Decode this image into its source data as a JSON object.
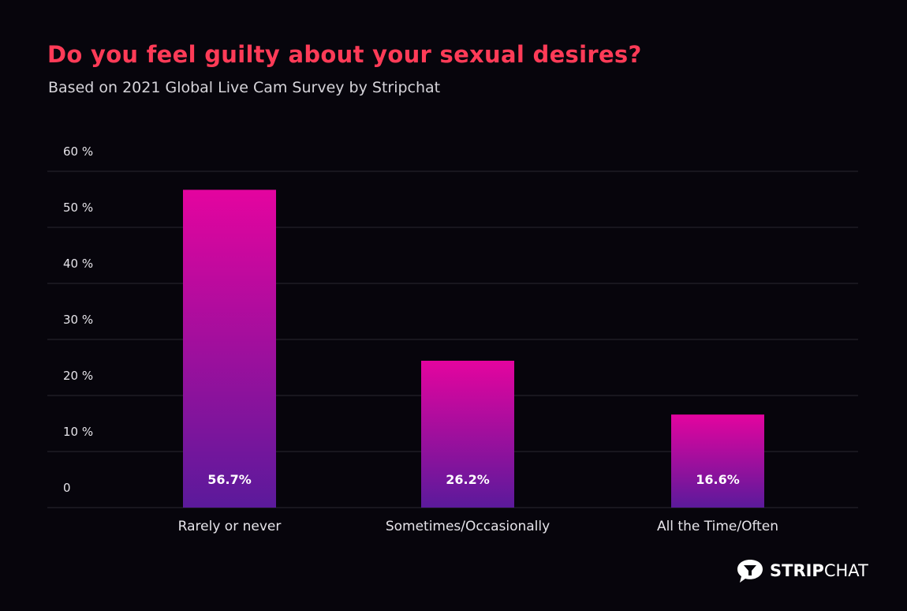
{
  "title": "Do you feel guilty about your sexual desires?",
  "subtitle": "Based on 2021 Global Live Cam Survey by Stripchat",
  "logo": {
    "bold": "STRIP",
    "light": "CHAT"
  },
  "colors": {
    "background": "#07050c",
    "title": "#ff3b57",
    "bar_top": "#e4049f",
    "bar_bottom": "#5b1a9b",
    "grid": "#2a2830"
  },
  "chart_data": {
    "type": "bar",
    "categories": [
      "Rarely or never",
      "Sometimes/Occasionally",
      "All the Time/Often"
    ],
    "values": [
      56.7,
      26.2,
      16.6
    ],
    "data_labels": [
      "56.7%",
      "26.2%",
      "16.6%"
    ],
    "title": "Do you feel guilty about your sexual desires?",
    "xlabel": "",
    "ylabel": "",
    "ylim": [
      0,
      60
    ],
    "yticks": [
      0,
      10,
      20,
      30,
      40,
      50,
      60
    ],
    "ytick_labels": [
      "0",
      "10 %",
      "20 %",
      "30 %",
      "40 %",
      "50 %",
      "60 %"
    ],
    "grid": true,
    "legend": "none"
  }
}
